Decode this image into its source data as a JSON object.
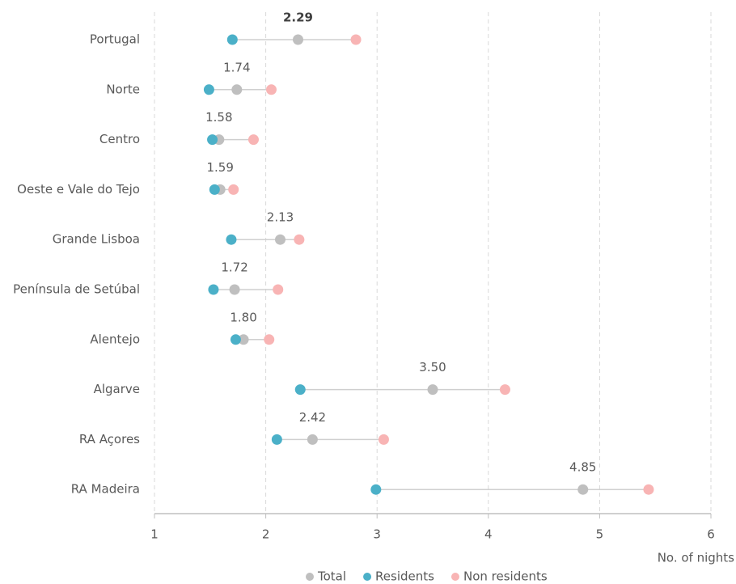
{
  "chart_data": {
    "type": "dot",
    "categories": [
      "Portugal",
      "Norte",
      "Centro",
      "Oeste e Vale do  Tejo",
      "Grande Lisboa",
      "Península de Setúbal",
      "Alentejo",
      "Algarve",
      "RA Açores",
      "RA Madeira"
    ],
    "series": [
      {
        "name": "Total",
        "color": "#bfbfbf",
        "values": [
          2.29,
          1.74,
          1.58,
          1.59,
          2.13,
          1.72,
          1.8,
          3.5,
          2.42,
          4.85
        ],
        "value_labels": [
          "2.29",
          "1.74",
          "1.58",
          "1.59",
          "2.13",
          "1.72",
          "1.80",
          "3.50",
          "2.42",
          "4.85"
        ]
      },
      {
        "name": "Residents",
        "color": "#4bb0c8",
        "values": [
          1.7,
          1.49,
          1.52,
          1.54,
          1.69,
          1.53,
          1.73,
          2.31,
          2.1,
          2.99
        ]
      },
      {
        "name": "Non residents",
        "color": "#f8b4b4",
        "values": [
          2.81,
          2.05,
          1.89,
          1.71,
          2.3,
          2.11,
          2.03,
          4.15,
          3.06,
          5.44
        ]
      }
    ],
    "xlabel": "No. of nights",
    "xlim": [
      1,
      6
    ],
    "xticks": [
      1,
      2,
      3,
      4,
      5,
      6
    ],
    "grid": true,
    "legend": "bottom"
  }
}
